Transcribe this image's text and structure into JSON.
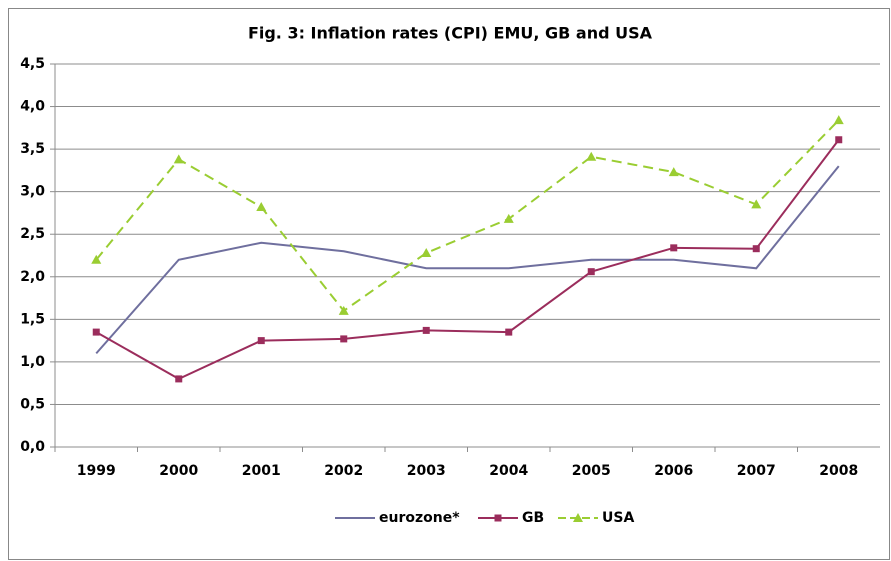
{
  "chart_data": {
    "type": "line",
    "title": "Fig. 3: Inflation rates (CPI) EMU, GB and USA",
    "categories": [
      "1999",
      "2000",
      "2001",
      "2002",
      "2003",
      "2004",
      "2005",
      "2006",
      "2007",
      "2008"
    ],
    "series": [
      {
        "name": "eurozone*",
        "color": "#6f6f9e",
        "marker": "none",
        "dash": false,
        "values": [
          1.1,
          2.2,
          2.4,
          2.3,
          2.1,
          2.1,
          2.2,
          2.2,
          2.1,
          3.3
        ]
      },
      {
        "name": "GB",
        "color": "#9b2d5c",
        "marker": "square",
        "dash": false,
        "values": [
          1.35,
          0.8,
          1.25,
          1.27,
          1.37,
          1.35,
          2.06,
          2.34,
          2.33,
          3.61
        ]
      },
      {
        "name": "USA",
        "color": "#9acd32",
        "marker": "triangle",
        "dash": true,
        "values": [
          2.2,
          3.38,
          2.82,
          1.6,
          2.28,
          2.68,
          3.41,
          3.23,
          2.85,
          3.84
        ]
      }
    ],
    "ylim": [
      0,
      4.5
    ],
    "yticks": [
      {
        "value": 0,
        "label": "0,0"
      },
      {
        "value": 0.5,
        "label": "0,5"
      },
      {
        "value": 1,
        "label": "1,0"
      },
      {
        "value": 1.5,
        "label": "1,5"
      },
      {
        "value": 2,
        "label": "2,0"
      },
      {
        "value": 2.5,
        "label": "2,5"
      },
      {
        "value": 3,
        "label": "3,0"
      },
      {
        "value": 3.5,
        "label": "3,5"
      },
      {
        "value": 4,
        "label": "4,0"
      },
      {
        "value": 4.5,
        "label": "4,5"
      }
    ],
    "grid": true,
    "legend": "bottom"
  }
}
